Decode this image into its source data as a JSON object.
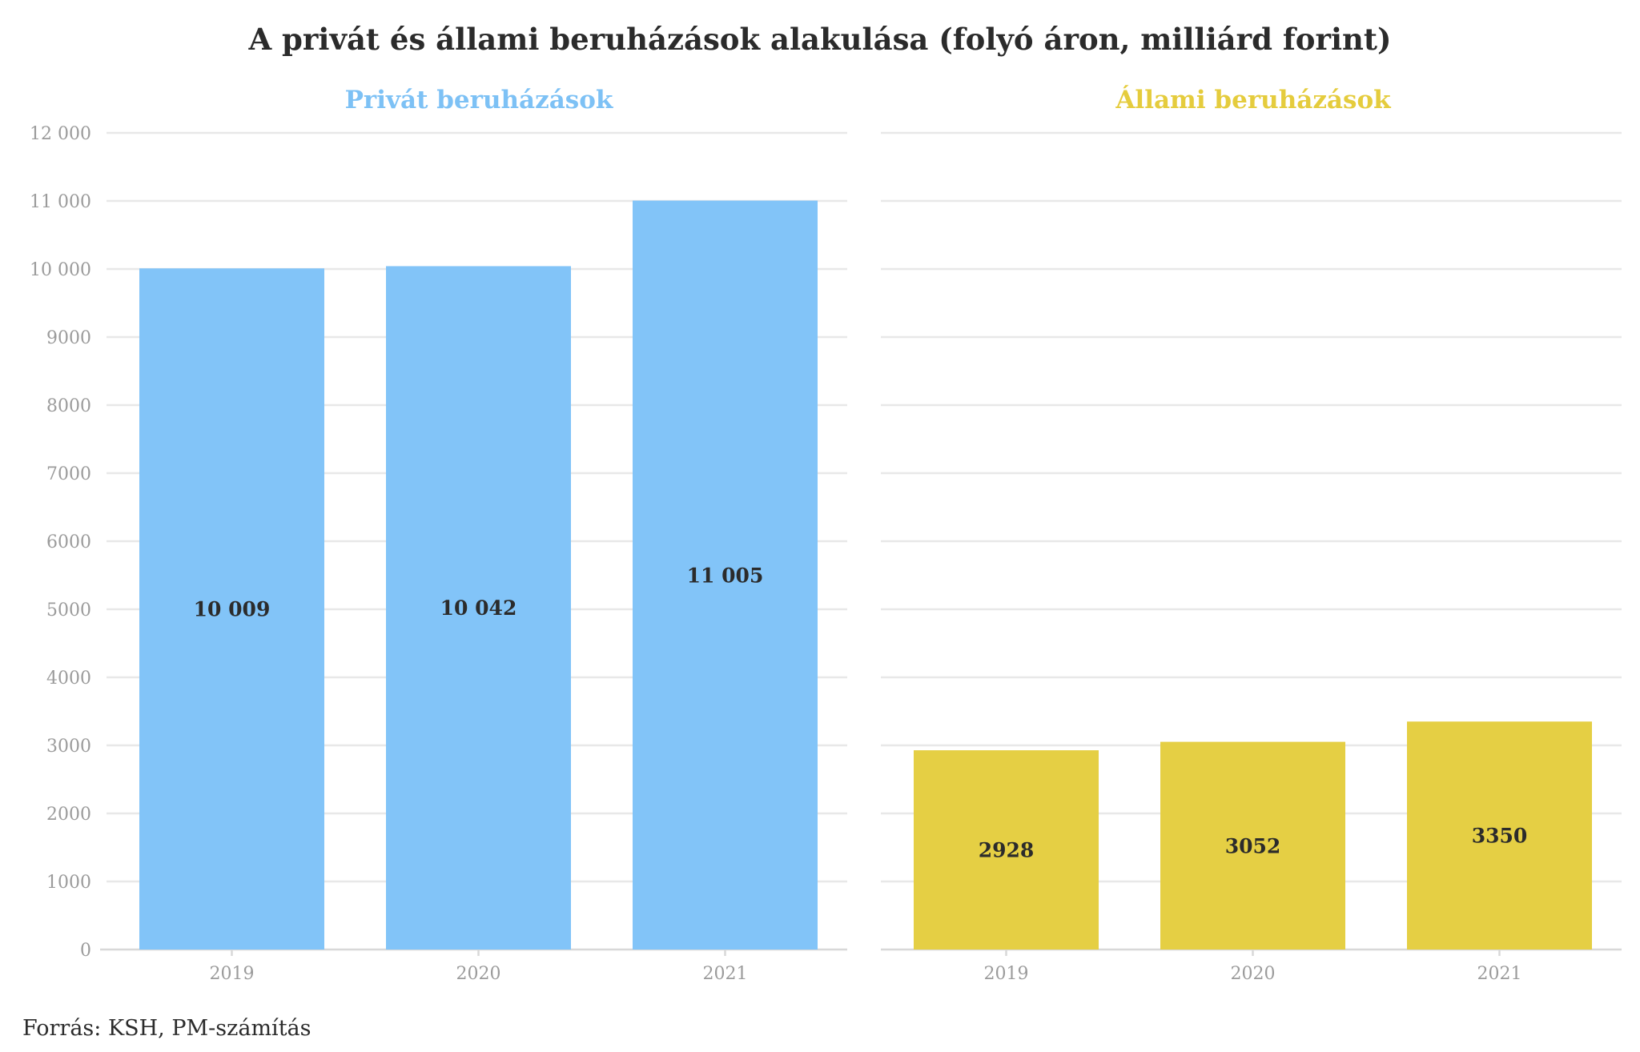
{
  "chart_data": {
    "type": "bar",
    "title": "A privát és állami beruházások alakulása (folyó áron, milliárd forint)",
    "source": "Forrás: KSH, PM-számítás",
    "ylim": [
      0,
      12000
    ],
    "yticks": [
      0,
      1000,
      2000,
      3000,
      4000,
      5000,
      6000,
      7000,
      8000,
      9000,
      10000,
      11000,
      12000
    ],
    "ytick_labels": [
      "0",
      "1000",
      "2000",
      "3000",
      "4000",
      "5000",
      "6000",
      "7000",
      "8000",
      "9000",
      "10 000",
      "11 000",
      "12 000"
    ],
    "grid": true,
    "panels": [
      {
        "title": "Privát beruházások",
        "color": "#82c4f8",
        "title_color": "#7dc1f5",
        "categories": [
          "2019",
          "2020",
          "2021"
        ],
        "values": [
          10009,
          10042,
          11005
        ],
        "value_labels": [
          "10 009",
          "10 042",
          "11 005"
        ]
      },
      {
        "title": "Állami beruházások",
        "color": "#e5cf44",
        "title_color": "#e5cc3d",
        "categories": [
          "2019",
          "2020",
          "2021"
        ],
        "values": [
          2928,
          3052,
          3350
        ],
        "value_labels": [
          "2928",
          "3052",
          "3350"
        ]
      }
    ]
  }
}
